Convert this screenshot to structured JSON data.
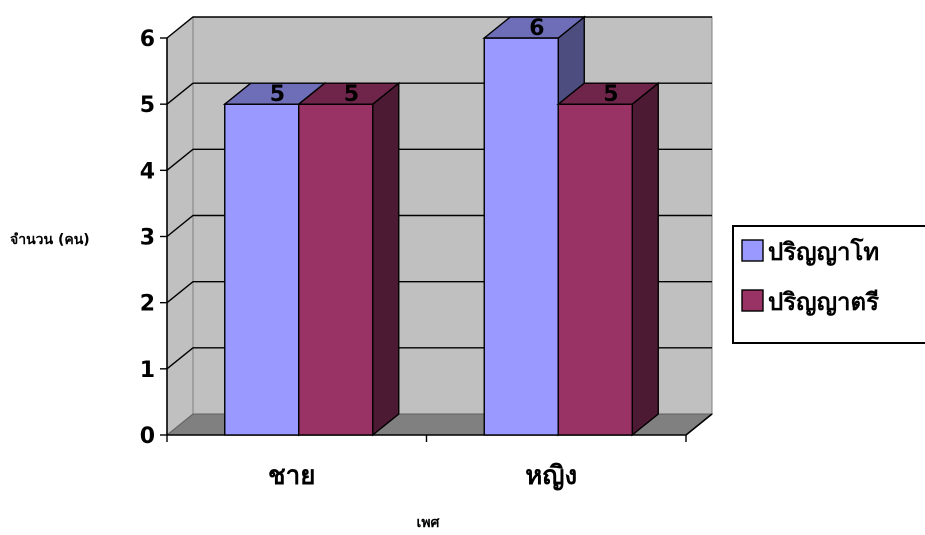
{
  "chart_data": {
    "type": "bar",
    "three_d": true,
    "categories": [
      "ชาย",
      "หญิง"
    ],
    "series": [
      {
        "name": "ปริญญาโท",
        "values": [
          5,
          6
        ],
        "color": "#9999FF"
      },
      {
        "name": "ปริญญาตรี",
        "values": [
          5,
          5
        ],
        "color": "#993366"
      }
    ],
    "data_labels": true,
    "xlabel": "เพศ",
    "ylabel": "จำนวน (คน)",
    "ylim": [
      0,
      6
    ],
    "yticks": [
      0,
      1,
      2,
      3,
      4,
      5,
      6
    ],
    "grid": true,
    "wall_color": "#C0C0C0",
    "floor_color": "#808080",
    "legend": "right"
  }
}
